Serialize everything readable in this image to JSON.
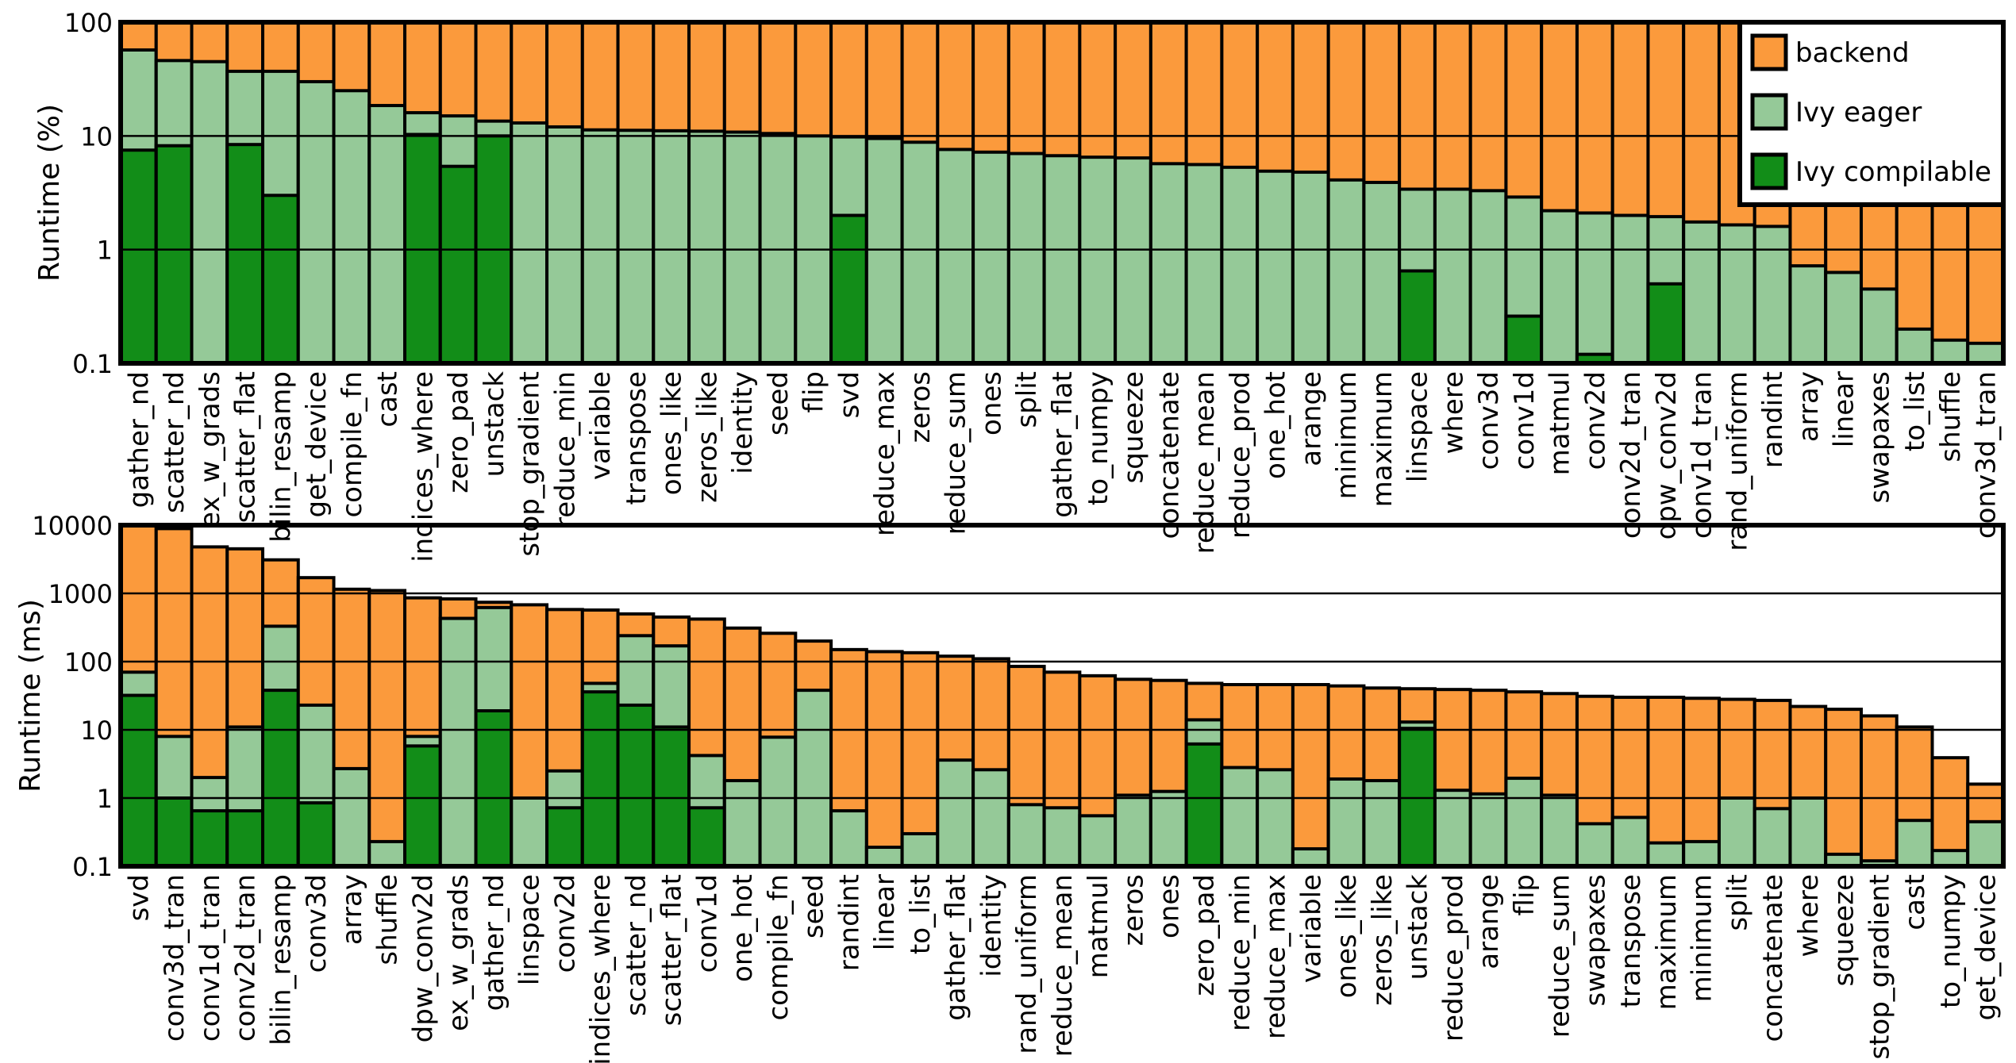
{
  "chart_data": [
    {
      "type": "bar",
      "stacked": true,
      "yscale": "log",
      "ylabel": "Runtime (%)",
      "ylim": [
        0.1,
        100
      ],
      "yticks": [
        "0.1",
        "1",
        "10",
        "100"
      ],
      "legend_position": "top-right",
      "legend": [
        "backend",
        "Ivy eager",
        "Ivy compilable"
      ],
      "colors": {
        "backend": "#fb9a3c",
        "eager": "#95c998",
        "compilable": "#128d18"
      },
      "categories": [
        "gather_nd",
        "scatter_nd",
        "ex_w_grads",
        "scatter_flat",
        "bilin_resamp",
        "get_device",
        "compile_fn",
        "cast",
        "indices_where",
        "zero_pad",
        "unstack",
        "stop_gradient",
        "reduce_min",
        "variable",
        "transpose",
        "ones_like",
        "zeros_like",
        "identity",
        "seed",
        "flip",
        "svd",
        "reduce_max",
        "zeros",
        "reduce_sum",
        "ones",
        "split",
        "gather_flat",
        "to_numpy",
        "squeeze",
        "concatenate",
        "reduce_mean",
        "reduce_prod",
        "one_hot",
        "arange",
        "minimum",
        "maximum",
        "linspace",
        "where",
        "conv3d",
        "conv1d",
        "matmul",
        "conv2d",
        "conv2d_tran",
        "dpw_conv2d",
        "conv1d_tran",
        "rand_uniform",
        "randint",
        "array",
        "linear",
        "swapaxes",
        "to_list",
        "shuffle",
        "conv3d_tran"
      ],
      "series": [
        {
          "name": "Ivy compilable",
          "values": [
            7.5,
            8.2,
            0,
            8.4,
            3.0,
            0,
            0,
            0,
            10.3,
            5.4,
            10.0,
            0,
            0,
            0,
            0,
            0,
            0,
            0,
            0,
            0,
            2.0,
            0,
            0,
            0,
            0,
            0,
            0,
            0,
            0,
            0,
            0,
            0,
            0,
            0,
            0,
            0,
            0.65,
            0,
            0,
            0.26,
            0,
            0.12,
            0,
            0.5,
            0,
            0,
            0,
            0,
            0,
            0,
            0,
            0,
            0
          ]
        },
        {
          "name": "Ivy eager",
          "values": [
            57,
            46,
            45,
            37,
            37,
            30,
            25,
            18.5,
            16,
            15,
            13.5,
            13,
            12,
            11.3,
            11.2,
            11.1,
            11,
            10.8,
            10.5,
            10,
            9.8,
            9.5,
            8.8,
            7.6,
            7.2,
            7.0,
            6.7,
            6.5,
            6.4,
            5.7,
            5.6,
            5.3,
            4.9,
            4.8,
            4.1,
            3.9,
            3.4,
            3.4,
            3.3,
            2.9,
            2.2,
            2.1,
            2.0,
            1.95,
            1.75,
            1.65,
            1.6,
            0.72,
            0.63,
            0.45,
            0.2,
            0.16,
            0.15
          ]
        },
        {
          "name": "backend",
          "values": [
            100,
            100,
            100,
            100,
            100,
            100,
            100,
            100,
            100,
            100,
            100,
            100,
            100,
            100,
            100,
            100,
            100,
            100,
            100,
            100,
            100,
            100,
            100,
            100,
            100,
            100,
            100,
            100,
            100,
            100,
            100,
            100,
            100,
            100,
            100,
            100,
            100,
            100,
            100,
            100,
            100,
            100,
            100,
            100,
            100,
            100,
            100,
            100,
            100,
            100,
            100,
            100,
            100
          ]
        }
      ]
    },
    {
      "type": "bar",
      "stacked": true,
      "yscale": "log",
      "ylabel": "Runtime (ms)",
      "ylim": [
        0.1,
        10000
      ],
      "yticks": [
        "0.1",
        "1",
        "10",
        "100",
        "1000",
        "10000"
      ],
      "colors": {
        "backend": "#fb9a3c",
        "eager": "#95c998",
        "compilable": "#128d18"
      },
      "categories": [
        "svd",
        "conv3d_tran",
        "conv1d_tran",
        "conv2d_tran",
        "bilin_resamp",
        "conv3d",
        "array",
        "shuffle",
        "dpw_conv2d",
        "ex_w_grads",
        "gather_nd",
        "linspace",
        "conv2d",
        "indices_where",
        "scatter_nd",
        "scatter_flat",
        "conv1d",
        "one_hot",
        "compile_fn",
        "seed",
        "randint",
        "linear",
        "to_list",
        "gather_flat",
        "identity",
        "rand_uniform",
        "reduce_mean",
        "matmul",
        "zeros",
        "ones",
        "zero_pad",
        "reduce_min",
        "reduce_max",
        "variable",
        "ones_like",
        "zeros_like",
        "unstack",
        "reduce_prod",
        "arange",
        "flip",
        "reduce_sum",
        "swapaxes",
        "transpose",
        "maximum",
        "minimum",
        "split",
        "concatenate",
        "where",
        "squeeze",
        "stop_gradient",
        "cast",
        "to_numpy",
        "get_device"
      ],
      "series": [
        {
          "name": "Ivy compilable",
          "values": [
            32,
            1.0,
            0.65,
            0.65,
            38,
            0.85,
            0,
            0,
            5.8,
            0,
            19,
            0,
            0.72,
            36,
            23,
            11,
            0.72,
            0,
            0,
            0,
            0,
            0,
            0,
            0,
            0,
            0,
            0,
            0,
            0,
            0,
            6.2,
            0,
            0,
            0,
            0,
            0,
            10.5,
            0,
            0,
            0,
            0,
            0,
            0,
            0,
            0,
            0,
            0,
            0,
            0,
            0,
            0,
            0,
            0
          ]
        },
        {
          "name": "Ivy eager",
          "values": [
            70,
            8,
            2.0,
            11,
            330,
            23,
            2.7,
            0.23,
            8,
            430,
            620,
            1.0,
            2.5,
            48,
            240,
            170,
            4.2,
            1.8,
            7.8,
            38,
            0.65,
            0.19,
            0.3,
            3.6,
            2.6,
            0.8,
            0.72,
            0.55,
            1.1,
            1.25,
            14,
            2.8,
            2.6,
            0.18,
            1.9,
            1.8,
            13,
            1.3,
            1.15,
            1.95,
            1.1,
            0.42,
            0.52,
            0.22,
            0.23,
            1.0,
            0.7,
            1.0,
            0.15,
            0.12,
            0.47,
            0.17,
            0.45
          ]
        },
        {
          "name": "backend",
          "values": [
            9800,
            8900,
            4800,
            4500,
            3100,
            1700,
            1150,
            1100,
            860,
            830,
            740,
            680,
            580,
            570,
            500,
            450,
            420,
            310,
            260,
            200,
            150,
            140,
            135,
            120,
            110,
            85,
            70,
            62,
            55,
            53,
            48,
            46,
            46,
            46,
            44,
            41,
            40,
            39,
            38,
            36,
            34,
            31,
            30,
            30,
            29,
            28,
            27,
            22,
            20,
            16,
            11,
            3.9,
            1.6
          ]
        }
      ]
    }
  ]
}
